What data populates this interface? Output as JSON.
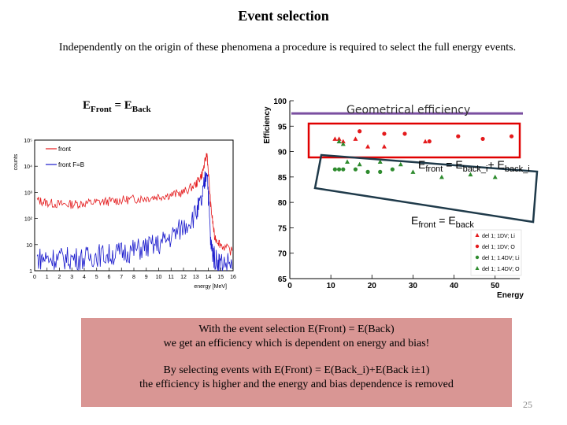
{
  "title": "Event selection",
  "intro": "Independently on the origin of these phenomena a procedure is required to select the full energy events.",
  "equality": {
    "e": "E",
    "front_sub": "Front",
    "eq": "= E",
    "back_sub": "Back"
  },
  "geometrical_label": "Geometrical efficiency",
  "anno1": {
    "e": "E",
    "front": "front",
    "mid": " = E",
    "back": "back_i",
    "plus": "+ E",
    "back2": "back_i"
  },
  "anno2": {
    "e": "E",
    "front": "front",
    "mid": " = E",
    "back": "back"
  },
  "summary": {
    "line1": "With the event selection E(Front) = E(Back)",
    "line2": "we get an efficiency which is dependent on energy and bias!",
    "line3": "By selecting events with E(Front) = E(Back_i)+E(Back i±1)",
    "line4": "the efficiency is higher and the energy and bias dependence is removed"
  },
  "slide_number": "25",
  "colors": {
    "red": "#e41a1c",
    "blue": "#1a1acc",
    "green": "#2e8b2e",
    "purple": "#7a4fa0",
    "box_red": "#e00000",
    "box_dark": "#1f3a4a",
    "summary_bg": "#d99694"
  },
  "chart_data": [
    {
      "type": "line",
      "title": "",
      "xlabel": "energy [MeV]",
      "ylabel": "counts",
      "log_y": true,
      "xlim": [
        0,
        16
      ],
      "ylim_exponents": [
        0,
        5
      ],
      "x_ticks": [
        "0",
        "1",
        "2",
        "3",
        "4",
        "5",
        "6",
        "7",
        "8",
        "9",
        "10",
        "11",
        "12",
        "13",
        "14",
        "15",
        "16"
      ],
      "y_ticks": [
        "1",
        "10",
        "10²",
        "10³",
        "10⁴",
        "10⁵"
      ],
      "legend": [
        "front",
        "front F=B"
      ],
      "series": [
        {
          "name": "front",
          "x": [
            0.2,
            1,
            2,
            3,
            4,
            5,
            6,
            7,
            8,
            9,
            10,
            11,
            12,
            13,
            13.5,
            13.9,
            14.2,
            14.5,
            15,
            16
          ],
          "y": [
            500,
            400,
            350,
            350,
            380,
            420,
            450,
            500,
            550,
            600,
            700,
            800,
            1000,
            2000,
            5000,
            30000,
            300,
            20,
            10,
            5
          ]
        },
        {
          "name": "front F=B",
          "x": [
            0.2,
            1,
            2,
            3,
            4,
            5,
            6,
            7,
            8,
            9,
            10,
            11,
            12,
            13,
            13.5,
            13.9,
            14.2,
            14.5,
            15,
            16
          ],
          "y": [
            3,
            3,
            3,
            3,
            3,
            4,
            4,
            5,
            6,
            8,
            10,
            20,
            50,
            150,
            500,
            10000,
            10,
            3,
            2,
            2
          ]
        }
      ]
    },
    {
      "type": "scatter",
      "xlabel": "Energy",
      "ylabel": "Efficiency",
      "xlim": [
        0,
        56
      ],
      "ylim": [
        65,
        100
      ],
      "x_ticks": [
        "0",
        "10",
        "20",
        "30",
        "40",
        "50"
      ],
      "y_ticks": [
        "65",
        "70",
        "75",
        "80",
        "85",
        "90",
        "95",
        "100"
      ],
      "geometrical_efficiency": 97.5,
      "legend": [
        "del 1; 1DV; Li",
        "del 1; 1DV; O",
        "del 1; 1.4DV; Li",
        "del 1; 1.4DV; O"
      ],
      "series": [
        {
          "name": "del 1; 1DV; Li",
          "x": [
            11,
            12,
            13,
            16,
            19,
            23,
            33
          ],
          "y": [
            92.5,
            92.5,
            92,
            92.5,
            91,
            91,
            92
          ]
        },
        {
          "name": "del 1; 1DV; O",
          "x": [
            17,
            23,
            28,
            34,
            41,
            47,
            54
          ],
          "y": [
            94,
            93.5,
            93.5,
            92,
            93,
            92.5,
            93
          ]
        },
        {
          "name": "del 1; 1.4DV; Li",
          "x": [
            11,
            12,
            13,
            16,
            19,
            22,
            25
          ],
          "y": [
            86.5,
            86.5,
            86.5,
            86.5,
            86,
            86,
            86.5
          ]
        },
        {
          "name": "del 1; 1.4DV; O",
          "x": [
            12,
            13,
            14,
            17,
            22,
            27,
            30,
            37,
            44,
            50
          ],
          "y": [
            92,
            91.5,
            88,
            87.5,
            88,
            87.5,
            86,
            85,
            85.5,
            85
          ]
        }
      ]
    }
  ]
}
